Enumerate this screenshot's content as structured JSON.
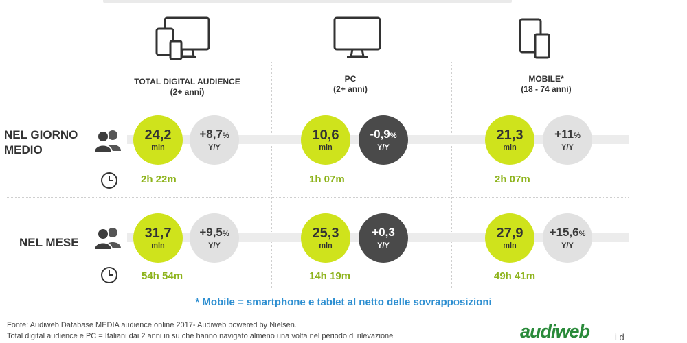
{
  "columns": [
    {
      "title": "TOTAL DIGITAL AUDIENCE",
      "subtitle": "(2+ anni)",
      "icon": "multi-device-icon"
    },
    {
      "title": "PC",
      "subtitle": "(2+ anni)",
      "icon": "desktop-monitor-icon"
    },
    {
      "title": "MOBILE*",
      "subtitle": "(18 - 74 anni)",
      "icon": "tablet-phone-icon"
    }
  ],
  "rows": [
    {
      "label": "NEL GIORNO MEDIO",
      "label_lines": [
        "NEL GIORNO",
        "MEDIO"
      ],
      "cells": [
        {
          "value": "24,2",
          "unit": "mln",
          "yoy": "+8,7",
          "yoy_suffix": "%",
          "yoy_label": "Y/Y",
          "time": "2h 22m",
          "yoy_style": "gray"
        },
        {
          "value": "10,6",
          "unit": "mln",
          "yoy": "-0,9",
          "yoy_suffix": "%",
          "yoy_label": "Y/Y",
          "time": "1h 07m",
          "yoy_style": "dark"
        },
        {
          "value": "21,3",
          "unit": "mln",
          "yoy": "+11",
          "yoy_suffix": "%",
          "yoy_label": "Y/Y",
          "time": "2h 07m",
          "yoy_style": "gray"
        }
      ]
    },
    {
      "label": "NEL MESE",
      "label_lines": [
        "NEL MESE"
      ],
      "cells": [
        {
          "value": "31,7",
          "unit": "mln",
          "yoy": "+9,5",
          "yoy_suffix": "%",
          "yoy_label": "Y/Y",
          "time": "54h 54m",
          "yoy_style": "gray"
        },
        {
          "value": "25,3",
          "unit": "mln",
          "yoy": "+0,3",
          "yoy_suffix": "",
          "yoy_label": "Y/Y",
          "time": "14h 19m",
          "yoy_style": "dark"
        },
        {
          "value": "27,9",
          "unit": "mln",
          "yoy": "+15,6",
          "yoy_suffix": "%",
          "yoy_label": "Y/Y",
          "time": "49h 41m",
          "yoy_style": "gray"
        }
      ]
    }
  ],
  "footnote": "* Mobile = smartphone e tablet al netto delle sovrapposizioni",
  "source_line_1": "Fonte: Audiweb Database MEDIA audience online 2017- Audiweb powered by Nielsen.",
  "source_line_2": "Total digital audience e PC = Italiani dai 2 anni in su che hanno navigato almeno una volta nel periodo di rilevazione",
  "logo": "audiweb",
  "logo_tail": "i d",
  "colors": {
    "green": "#cfe31c",
    "gray": "#e1e1e1",
    "dark": "#4a4a4a",
    "time": "#8db31b",
    "footnote": "#2e8fd1"
  }
}
